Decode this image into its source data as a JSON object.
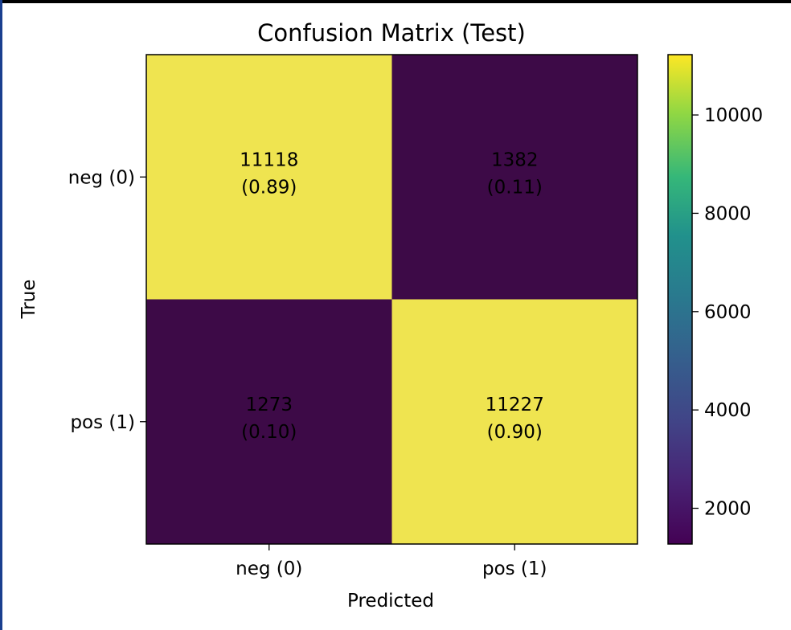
{
  "chart_data": {
    "type": "heatmap",
    "title": "Confusion Matrix (Test)",
    "xlabel": "Predicted",
    "ylabel": "True",
    "x_categories": [
      "neg (0)",
      "pos (1)"
    ],
    "y_categories": [
      "neg (0)",
      "pos (1)"
    ],
    "values": [
      [
        11118,
        1382
      ],
      [
        1273,
        11227
      ]
    ],
    "fractions": [
      [
        "0.89",
        "0.11"
      ],
      [
        "0.10",
        "0.90"
      ]
    ],
    "cell_labels": [
      [
        "11118",
        "1382"
      ],
      [
        "1273",
        "11227"
      ]
    ],
    "fraction_labels": [
      [
        "(0.89)",
        "(0.11)"
      ],
      [
        "(0.10)",
        "(0.90)"
      ]
    ],
    "colormap": "viridis",
    "color_range": [
      1273,
      11227
    ],
    "colorbar": {
      "ticks": [
        2000,
        4000,
        6000,
        8000,
        10000
      ],
      "tick_labels": [
        "2000",
        "4000",
        "6000",
        "8000",
        "10000"
      ]
    },
    "colors": {
      "high": "#efe450",
      "low": "#3d0a47"
    }
  }
}
